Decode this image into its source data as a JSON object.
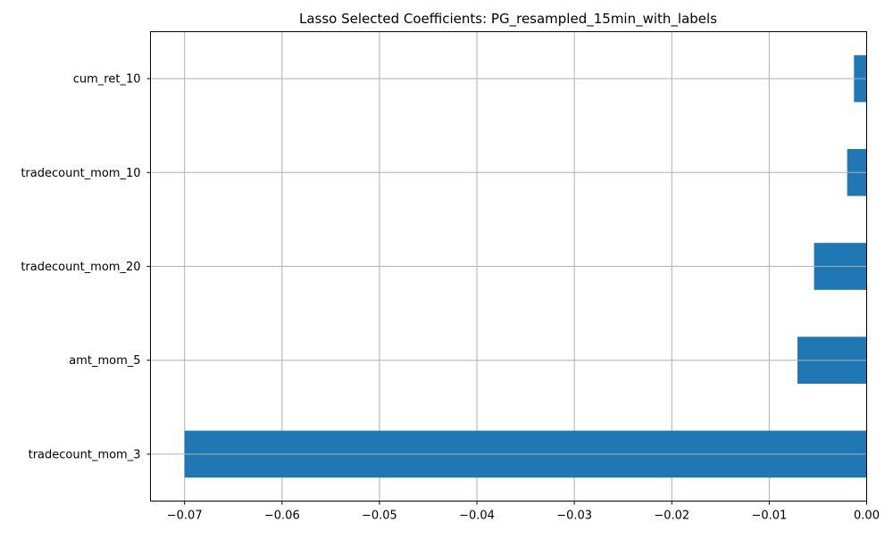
{
  "chart_data": {
    "type": "bar",
    "orientation": "horizontal",
    "title": "Lasso Selected Coefficients: PG_resampled_15min_with_labels",
    "xlabel": "",
    "ylabel": "",
    "categories": [
      "tradecount_mom_3",
      "amt_mom_5",
      "tradecount_mom_20",
      "tradecount_mom_10",
      "cum_ret_10"
    ],
    "values": [
      -0.07,
      -0.0071,
      -0.0054,
      -0.002,
      -0.0013
    ],
    "xlim": [
      -0.0735,
      0.0
    ],
    "xticks": [
      -0.07,
      -0.06,
      -0.05,
      -0.04,
      -0.03,
      -0.02,
      -0.01,
      0.0
    ],
    "xtick_labels": [
      "−0.07",
      "−0.06",
      "−0.05",
      "−0.04",
      "−0.03",
      "−0.02",
      "−0.01",
      "0.00"
    ],
    "grid": true,
    "bar_color": "#1f77b4",
    "grid_color": "#b0b0b0"
  }
}
